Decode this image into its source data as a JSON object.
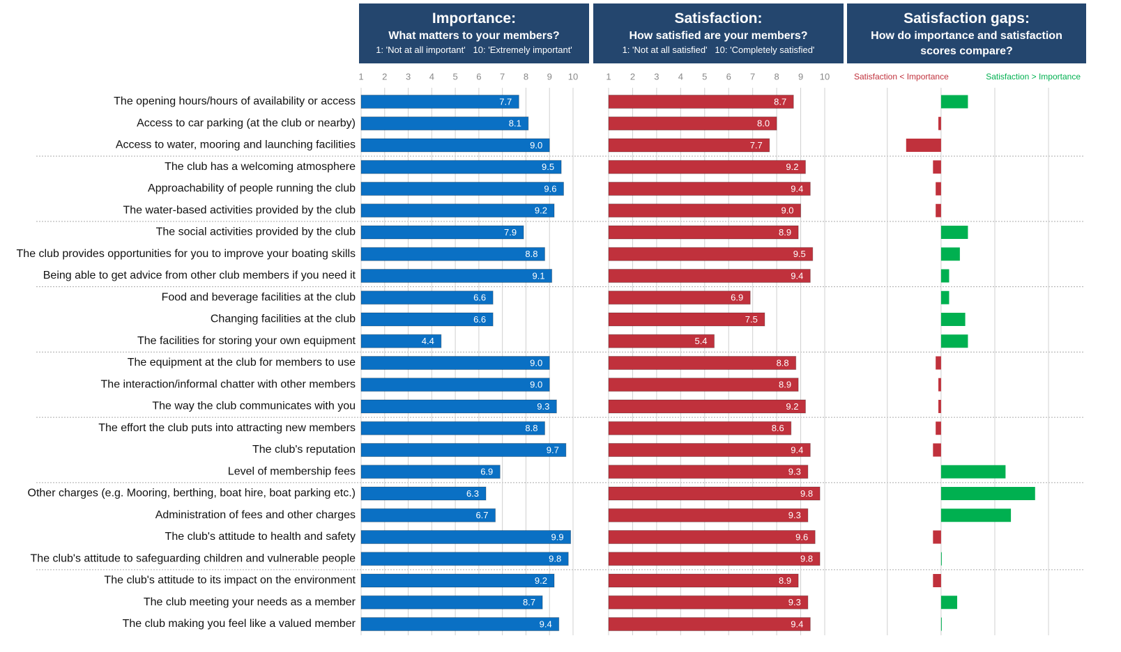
{
  "chart_data": [
    {
      "type": "hbar",
      "title": "Importance:",
      "subtitle": "What matters to your members?",
      "note": "1: 'Not at all important'   10: 'Extremely important'",
      "categories": [
        "The opening hours/hours of availability or access",
        "Access to car parking (at the club or nearby)",
        "Access to water, mooring and launching facilities",
        "The club has a welcoming atmosphere",
        "Approachability of people running the club",
        "The water-based activities provided by the club",
        "The social activities provided by the club",
        "The club provides opportunities for you to improve your boating skills",
        "Being able to get advice from other club members if you need it",
        "Food and beverage facilities at the club",
        "Changing facilities at the club",
        "The facilities for storing your own equipment",
        "The equipment at the club for members to use",
        "The interaction/informal chatter with other members",
        "The way the club communicates with you",
        "The effort the club puts into attracting new members",
        "The club's reputation",
        "Level of membership fees",
        "Other charges (e.g. Mooring, berthing, boat hire, boat parking etc.)",
        "Administration of fees and other charges",
        "The club's attitude to health and safety",
        "The club's attitude to safeguarding children and vulnerable people",
        "The club's attitude to its impact on the environment",
        "The club meeting your needs as a member",
        "The club making you feel like a valued member"
      ],
      "values": [
        7.7,
        8.1,
        9,
        9.5,
        9.6,
        9.2,
        7.9,
        8.8,
        9.1,
        6.6,
        6.6,
        4.4,
        9,
        9,
        9.3,
        8.8,
        9.7,
        6.9,
        6.3,
        6.7,
        9.9,
        9.8,
        9.2,
        8.7,
        9.4
      ],
      "value_labels": [
        "7.7",
        "8.1",
        "9.0",
        "9.5",
        "9.6",
        "9.2",
        "7.9",
        "8.8",
        "9.1",
        "6.6",
        "6.6",
        "4.4",
        "9.0",
        "9.0",
        "9.3",
        "8.8",
        "9.7",
        "6.9",
        "6.3",
        "6.7",
        "9.9",
        "9.8",
        "9.2",
        "8.7",
        "9.4"
      ],
      "color": "#0a70c4",
      "xlim": [
        1,
        10
      ],
      "xticks": [
        1,
        2,
        3,
        4,
        5,
        6,
        7,
        8,
        9,
        10
      ],
      "grid": true
    },
    {
      "type": "hbar",
      "title": "Satisfaction:",
      "subtitle": "How satisfied are your members?",
      "note": "1: 'Not at all satisfied'   10: 'Completely satisfied'",
      "values": [
        8.7,
        8,
        7.7,
        9.2,
        9.4,
        9,
        8.9,
        9.5,
        9.4,
        6.9,
        7.5,
        5.4,
        8.8,
        8.9,
        9.2,
        8.6,
        9.4,
        9.3,
        9.8,
        9.3,
        9.6,
        9.8,
        8.9,
        9.3,
        9.4
      ],
      "value_labels": [
        "8.7",
        "8.0",
        "7.7",
        "9.2",
        "9.4",
        "9.0",
        "8.9",
        "9.5",
        "9.4",
        "6.9",
        "7.5",
        "5.4",
        "8.8",
        "8.9",
        "9.2",
        "8.6",
        "9.4",
        "9.3",
        "9.8",
        "9.3",
        "9.6",
        "9.8",
        "8.9",
        "9.3",
        "9.4"
      ],
      "color": "#c0313c",
      "xlim": [
        1,
        10
      ],
      "xticks": [
        1,
        2,
        3,
        4,
        5,
        6,
        7,
        8,
        9,
        10
      ],
      "grid": true
    },
    {
      "type": "gap",
      "title": "Satisfaction gaps:",
      "subtitle": "How do importance and satisfaction scores compare?",
      "negative_label": "Satisfaction < Importance",
      "positive_label": "Satisfaction > Importance",
      "values": [
        1,
        -0.1,
        -1.3,
        -0.3,
        -0.2,
        -0.2,
        1,
        0.7,
        0.3,
        0.3,
        0.9,
        1,
        -0.2,
        -0.1,
        -0.1,
        -0.2,
        -0.3,
        2.4,
        3.5,
        2.6,
        -0.3,
        0,
        -0.3,
        0.6,
        0
      ],
      "negative_color": "#c0313c",
      "positive_color": "#00b050",
      "xlim": [
        -3.5,
        5.4
      ],
      "xticks": [
        -2,
        0,
        2,
        4
      ],
      "grid": true
    }
  ]
}
